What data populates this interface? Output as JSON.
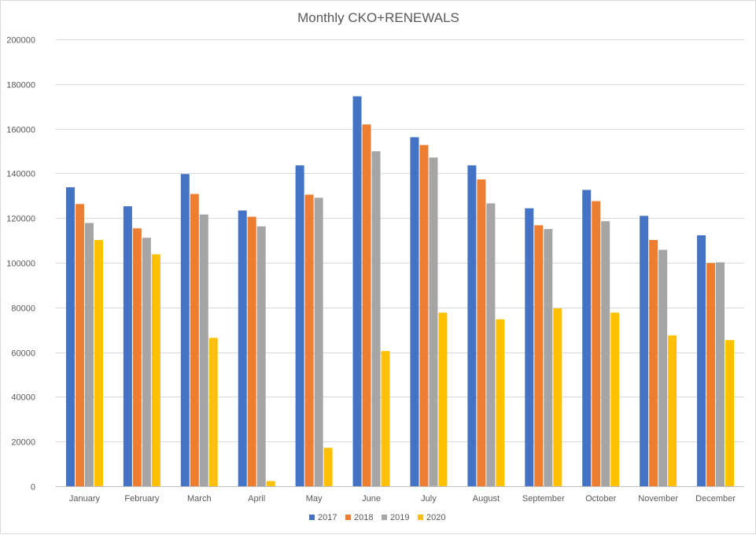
{
  "chart_data": {
    "type": "bar",
    "title": "Monthly CKO+RENEWALS",
    "xlabel": "",
    "ylabel": "",
    "categories": [
      "January",
      "February",
      "March",
      "April",
      "May",
      "June",
      "July",
      "August",
      "September",
      "October",
      "November",
      "December"
    ],
    "series": [
      {
        "name": "2017",
        "color": "#4472c4",
        "values": [
          133800,
          125300,
          139700,
          123400,
          143600,
          174500,
          156200,
          143600,
          124400,
          132600,
          121000,
          112300
        ]
      },
      {
        "name": "2018",
        "color": "#ed7d31",
        "values": [
          126300,
          115400,
          130800,
          120600,
          130500,
          161900,
          152700,
          137300,
          116800,
          127600,
          110200,
          99900
        ]
      },
      {
        "name": "2019",
        "color": "#a5a5a5",
        "values": [
          117800,
          111200,
          121600,
          116300,
          129100,
          149900,
          147100,
          126600,
          115100,
          118600,
          105800,
          100200
        ]
      },
      {
        "name": "2020",
        "color": "#ffc000",
        "values": [
          110200,
          103800,
          66400,
          2300,
          17200,
          60500,
          77700,
          74700,
          79600,
          77700,
          67500,
          65400
        ]
      }
    ],
    "ylim": [
      0,
      200000
    ],
    "yticks": [
      "0",
      "20000",
      "40000",
      "60000",
      "80000",
      "100000",
      "120000",
      "140000",
      "160000",
      "180000",
      "200000"
    ],
    "grid": true,
    "legend_position": "bottom"
  }
}
